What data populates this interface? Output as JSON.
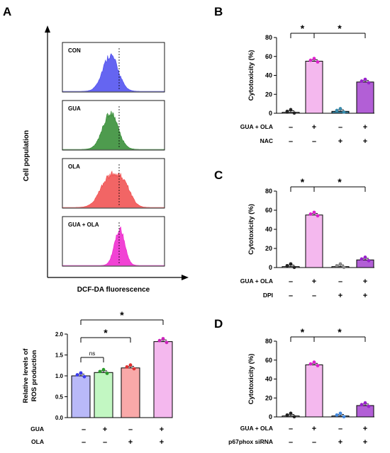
{
  "panels": {
    "A": {
      "letter": "A",
      "flow": {
        "ylabel": "Cell population",
        "xlabel": "DCF-DA fluorescence",
        "histograms": [
          {
            "label": "CON",
            "color": "#4a4aee"
          },
          {
            "label": "GUA",
            "color": "#2f8a2f"
          },
          {
            "label": "OLA",
            "color": "#f04a4a"
          },
          {
            "label": "GUA + OLA",
            "color": "#ee22cc"
          }
        ]
      }
    },
    "B": {
      "letter": "B"
    },
    "C": {
      "letter": "C"
    },
    "D": {
      "letter": "D"
    }
  },
  "chart_data": [
    {
      "type": "bar",
      "panel": "A",
      "ylabel": "Relative levels of ROS production",
      "ylabel_lines": [
        "Relative levels of",
        "ROS production"
      ],
      "ylim": [
        0,
        2.0
      ],
      "yticks": [
        "0.0",
        "0.5",
        "1.0",
        "1.5",
        "2.0"
      ],
      "ytick_values": [
        0,
        0.5,
        1.0,
        1.5,
        2.0
      ],
      "values": [
        1.0,
        1.08,
        1.19,
        1.82
      ],
      "fills": [
        "#b9b9f8",
        "#c2f7c2",
        "#f9a9a9",
        "#f4b8ee"
      ],
      "dot_colors": [
        "#3a3aee",
        "#2a9a2a",
        "#e03030",
        "#cc22bb"
      ],
      "conditions": [
        {
          "name": "GUA",
          "signs": [
            "–",
            "+",
            "–",
            "+"
          ]
        },
        {
          "name": "OLA",
          "signs": [
            "–",
            "–",
            "+",
            "+"
          ]
        }
      ],
      "comparisons": [
        {
          "from": 0,
          "to": 1,
          "label": "ns"
        },
        {
          "from": 0,
          "to": 2,
          "label": "*"
        },
        {
          "from": 0,
          "to": 3,
          "label": "*"
        }
      ]
    },
    {
      "type": "bar",
      "panel": "B",
      "ylabel": "Cytotoxicity (%)",
      "ylim": [
        0,
        80
      ],
      "yticks": [
        "0",
        "20",
        "40",
        "60",
        "80"
      ],
      "ytick_values": [
        0,
        20,
        40,
        60,
        80
      ],
      "values": [
        1,
        55,
        2,
        33
      ],
      "fills": [
        "#ffffff",
        "#f4b8ee",
        "#3a8aaa",
        "#b25fd6"
      ],
      "dot_colors": [
        "#222222",
        "#dd22cc",
        "#3a8aaa",
        "#9922cc"
      ],
      "conditions": [
        {
          "name": "GUA + OLA",
          "signs": [
            "–",
            "+",
            "–",
            "+"
          ]
        },
        {
          "name": "NAC",
          "signs": [
            "–",
            "–",
            "+",
            "+"
          ]
        }
      ],
      "comparisons": [
        {
          "from": 0,
          "to": 1,
          "label": "*"
        },
        {
          "from": 1,
          "to": 3,
          "label": "*"
        }
      ]
    },
    {
      "type": "bar",
      "panel": "C",
      "ylabel": "Cytotoxicity (%)",
      "ylim": [
        0,
        80
      ],
      "yticks": [
        "0",
        "20",
        "40",
        "60",
        "80"
      ],
      "ytick_values": [
        0,
        20,
        40,
        60,
        80
      ],
      "values": [
        1,
        55,
        1,
        8
      ],
      "fills": [
        "#ffffff",
        "#f4b8ee",
        "#dddddd",
        "#b25fd6"
      ],
      "dot_colors": [
        "#222222",
        "#dd22cc",
        "#888888",
        "#9922cc"
      ],
      "conditions": [
        {
          "name": "GUA + OLA",
          "signs": [
            "–",
            "+",
            "–",
            "+"
          ]
        },
        {
          "name": "DPI",
          "signs": [
            "–",
            "–",
            "+",
            "+"
          ]
        }
      ],
      "comparisons": [
        {
          "from": 0,
          "to": 1,
          "label": "*"
        },
        {
          "from": 1,
          "to": 3,
          "label": "*"
        }
      ]
    },
    {
      "type": "bar",
      "panel": "D",
      "ylabel": "Cytotoxicity (%)",
      "ylim": [
        0,
        80
      ],
      "yticks": [
        "0",
        "20",
        "40",
        "60",
        "80"
      ],
      "ytick_values": [
        0,
        20,
        40,
        60,
        80
      ],
      "values": [
        1,
        55,
        1,
        12
      ],
      "fills": [
        "#ffffff",
        "#f4b8ee",
        "#a8c8f0",
        "#b25fd6"
      ],
      "dot_colors": [
        "#222222",
        "#dd22cc",
        "#4488dd",
        "#9922cc"
      ],
      "conditions": [
        {
          "name": "GUA + OLA",
          "signs": [
            "–",
            "+",
            "–",
            "+"
          ]
        },
        {
          "name": "p67phox siRNA",
          "signs": [
            "–",
            "–",
            "+",
            "+"
          ]
        }
      ],
      "comparisons": [
        {
          "from": 0,
          "to": 1,
          "label": "*"
        },
        {
          "from": 1,
          "to": 3,
          "label": "*"
        }
      ]
    }
  ]
}
